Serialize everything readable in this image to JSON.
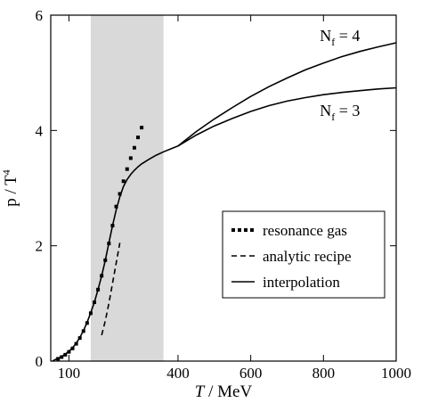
{
  "chart_data": {
    "type": "line",
    "xlabel_italic": "T",
    "xlabel_unit": " / MeV",
    "ylabel": "p / T",
    "ylabel_sup": "4",
    "xlim": [
      50,
      1000
    ],
    "ylim": [
      0,
      6
    ],
    "grid": false,
    "legend_position": "bottom-right",
    "xticks": [
      {
        "value": 100,
        "label": "100"
      },
      {
        "value": 400,
        "label": "400"
      },
      {
        "value": 600,
        "label": "600"
      },
      {
        "value": 800,
        "label": "800"
      },
      {
        "value": 1000,
        "label": "1000"
      }
    ],
    "yticks": [
      {
        "value": 0,
        "label": "0"
      },
      {
        "value": 2,
        "label": "2"
      },
      {
        "value": 4,
        "label": "4"
      },
      {
        "value": 6,
        "label": "6"
      }
    ],
    "shaded_band": {
      "x_from": 160,
      "x_to": 360,
      "color": "#d9d9d9"
    },
    "legend": [
      {
        "name": "resonance gas",
        "style": "dotted"
      },
      {
        "name": "analytic recipe",
        "style": "dashed"
      },
      {
        "name": "interpolation",
        "style": "solid"
      }
    ],
    "annotations": [
      {
        "main": "N",
        "sub": "f",
        "rest": " = 4",
        "x": 790,
        "y": 5.55
      },
      {
        "main": "N",
        "sub": "f",
        "rest": " = 3",
        "x": 790,
        "y": 4.25
      }
    ],
    "series": [
      {
        "style": "dotted",
        "x": [
          70,
          80,
          90,
          100,
          110,
          120,
          130,
          140,
          150,
          160,
          170,
          180,
          190,
          200,
          210,
          220,
          230,
          240,
          250,
          260,
          270,
          280,
          290,
          300
        ],
        "y": [
          0.04,
          0.07,
          0.11,
          0.16,
          0.22,
          0.3,
          0.4,
          0.52,
          0.66,
          0.83,
          1.02,
          1.24,
          1.48,
          1.75,
          2.04,
          2.35,
          2.68,
          2.9,
          3.12,
          3.33,
          3.52,
          3.7,
          3.88,
          4.05
        ]
      },
      {
        "style": "dashed",
        "x": [
          190,
          200,
          210,
          220,
          230,
          240
        ],
        "y": [
          0.45,
          0.7,
          1.0,
          1.35,
          1.7,
          2.05
        ]
      },
      {
        "style": "solid",
        "x": [
          55,
          60,
          70,
          80,
          90,
          100,
          110,
          120,
          130,
          140,
          150,
          160,
          170,
          180,
          190,
          200,
          210,
          220,
          230,
          240,
          250,
          260,
          270,
          280,
          290,
          300,
          320,
          340,
          360,
          380,
          400
        ],
        "y": [
          0.0,
          0.02,
          0.05,
          0.08,
          0.12,
          0.17,
          0.23,
          0.31,
          0.41,
          0.53,
          0.67,
          0.84,
          1.02,
          1.24,
          1.48,
          1.75,
          2.05,
          2.35,
          2.62,
          2.85,
          3.03,
          3.15,
          3.24,
          3.31,
          3.37,
          3.42,
          3.5,
          3.57,
          3.63,
          3.68,
          3.73
        ]
      },
      {
        "name": "N_f = 4",
        "style": "solid",
        "x": [
          400,
          450,
          500,
          550,
          600,
          650,
          700,
          750,
          800,
          850,
          900,
          950,
          1000
        ],
        "y": [
          3.73,
          3.98,
          4.2,
          4.4,
          4.59,
          4.76,
          4.91,
          5.05,
          5.17,
          5.28,
          5.37,
          5.45,
          5.52
        ]
      },
      {
        "name": "N_f = 3",
        "style": "solid",
        "x": [
          400,
          450,
          500,
          550,
          600,
          650,
          700,
          750,
          800,
          850,
          900,
          950,
          1000
        ],
        "y": [
          3.73,
          3.92,
          4.08,
          4.21,
          4.33,
          4.43,
          4.51,
          4.57,
          4.62,
          4.66,
          4.69,
          4.72,
          4.74
        ]
      }
    ]
  }
}
